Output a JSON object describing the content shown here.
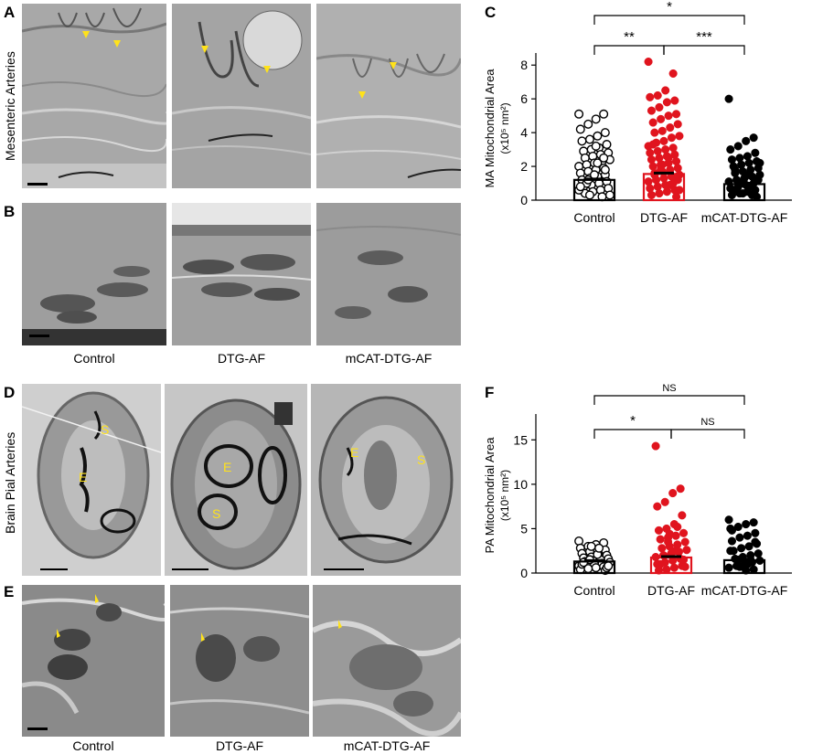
{
  "panels": {
    "A": {
      "letter": "A",
      "rowlabel": "Mesenteric Arteries"
    },
    "B": {
      "letter": "B"
    },
    "C": {
      "letter": "C"
    },
    "D": {
      "letter": "D",
      "rowlabel": "Brain Pial Arteries"
    },
    "E": {
      "letter": "E"
    },
    "F": {
      "letter": "F"
    }
  },
  "conditions": [
    "Control",
    "DTG-AF",
    "mCAT-DTG-AF"
  ],
  "micro_labels": {
    "E": "E",
    "S": "S"
  },
  "chart_data": [
    {
      "type": "bar",
      "panel": "C",
      "categories": [
        "Control",
        "DTG-AF",
        "mCAT-DTG-AF"
      ],
      "values": [
        1.2,
        1.55,
        0.95
      ],
      "ylabel": "MA Mitochondrial Area",
      "ylabel_unit": "(x10⁵ nm²)",
      "ylim": [
        0,
        8.5
      ],
      "yticks": [
        0,
        2,
        4,
        6,
        8
      ],
      "colors": [
        "#000000",
        "#e0141e",
        "#000000"
      ],
      "significance": [
        {
          "from": 0,
          "to": 1,
          "label": "**"
        },
        {
          "from": 1,
          "to": 2,
          "label": "***"
        },
        {
          "from": 0,
          "to": 2,
          "label": "*"
        }
      ],
      "points": [
        [
          5.1,
          5.1,
          4.8,
          4.5,
          4.2,
          4.0,
          3.8,
          3.6,
          3.5,
          3.3,
          3.1,
          3.0,
          2.9,
          2.8,
          2.7,
          2.6,
          2.5,
          2.4,
          2.3,
          2.2,
          2.1,
          2.0,
          1.9,
          1.8,
          1.7,
          1.6,
          1.5,
          1.4,
          1.3,
          1.2,
          1.1,
          1.0,
          0.9,
          0.8,
          0.7,
          0.6,
          0.5,
          0.4,
          0.3,
          0.2,
          1.5,
          1.0,
          0.6,
          2.5,
          3.2,
          1.2,
          0.8,
          1.8,
          2.2,
          0.3
        ],
        [
          8.2,
          7.5,
          6.5,
          6.2,
          6.1,
          5.9,
          5.8,
          5.5,
          5.3,
          5.1,
          5.0,
          4.8,
          4.6,
          4.5,
          4.3,
          4.1,
          4.0,
          3.8,
          3.7,
          3.5,
          3.4,
          3.2,
          3.1,
          3.0,
          2.9,
          2.8,
          2.7,
          2.6,
          2.5,
          2.4,
          2.3,
          2.2,
          2.1,
          2.0,
          1.9,
          1.8,
          1.7,
          1.6,
          1.5,
          1.4,
          1.3,
          1.2,
          1.1,
          1.0,
          0.9,
          0.8,
          0.7,
          0.6,
          0.5,
          0.4,
          0.3,
          0.2,
          2.5,
          1.8,
          3.3,
          1.2,
          0.9,
          2.1,
          1.5,
          0.6
        ],
        [
          6.0,
          3.7,
          3.5,
          3.2,
          3.0,
          2.8,
          2.6,
          2.5,
          2.4,
          2.3,
          2.2,
          2.1,
          2.0,
          1.9,
          1.8,
          1.7,
          1.6,
          1.5,
          1.4,
          1.3,
          1.2,
          1.1,
          1.0,
          0.9,
          0.8,
          0.7,
          0.6,
          0.5,
          0.4,
          0.3,
          0.2,
          1.5,
          1.0,
          0.6,
          1.2,
          0.8,
          0.4,
          1.8,
          2.2,
          0.3
        ]
      ]
    },
    {
      "type": "bar",
      "panel": "F",
      "categories": [
        "Control",
        "DTG-AF",
        "mCAT-DTG-AF"
      ],
      "values": [
        1.3,
        1.75,
        1.45
      ],
      "ylabel": "PA Mitochondrial Area",
      "ylabel_unit": "(x10⁵ nm²)",
      "ylim": [
        0,
        17.5
      ],
      "yticks": [
        0,
        5,
        10,
        15
      ],
      "colors": [
        "#000000",
        "#e0141e",
        "#000000"
      ],
      "significance": [
        {
          "from": 0,
          "to": 1,
          "label": "*"
        },
        {
          "from": 1,
          "to": 2,
          "label": "NS"
        },
        {
          "from": 0,
          "to": 2,
          "label": "NS"
        }
      ],
      "points": [
        [
          3.6,
          3.4,
          3.2,
          3.0,
          2.8,
          2.6,
          2.5,
          2.4,
          2.2,
          2.0,
          1.9,
          1.8,
          1.7,
          1.6,
          1.5,
          1.4,
          1.3,
          1.2,
          1.1,
          1.0,
          0.9,
          0.8,
          0.7,
          0.6,
          0.5,
          0.4,
          0.3,
          2.1,
          1.5,
          1.0,
          0.6,
          2.8,
          3.0,
          1.2,
          0.8
        ],
        [
          14.3,
          9.5,
          9.0,
          8.0,
          7.5,
          6.5,
          5.5,
          5.0,
          4.8,
          4.5,
          4.2,
          4.0,
          3.8,
          3.5,
          3.2,
          3.0,
          2.8,
          2.6,
          2.4,
          2.2,
          2.0,
          1.8,
          1.6,
          1.4,
          1.2,
          1.0,
          0.8,
          0.6,
          0.4,
          0.3,
          1.5,
          2.5,
          3.5,
          1.0,
          0.7,
          5.2,
          4.4
        ],
        [
          6.0,
          5.7,
          5.5,
          5.2,
          5.0,
          4.5,
          4.2,
          4.0,
          3.6,
          3.3,
          3.0,
          2.8,
          2.5,
          2.2,
          2.0,
          1.8,
          1.6,
          1.4,
          1.2,
          1.0,
          0.8,
          0.6,
          0.4,
          0.3,
          1.5,
          2.5,
          3.5,
          1.0,
          0.7,
          4.8
        ]
      ]
    }
  ]
}
